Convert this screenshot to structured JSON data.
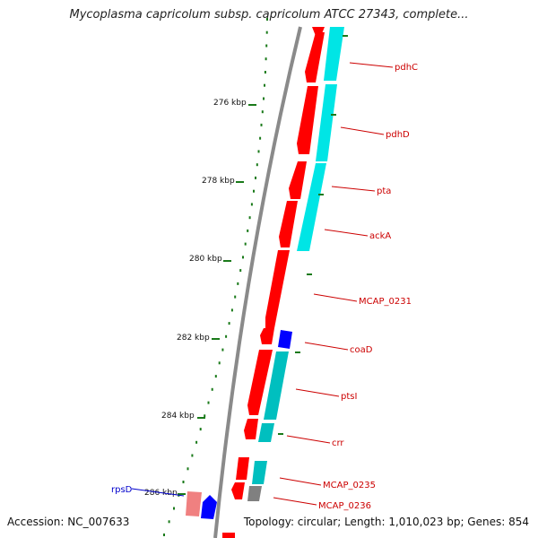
{
  "header": {
    "title": "Mycoplasma capricolum subsp. capricolum ATCC 27343, complete..."
  },
  "footer": {
    "accession": "Accession: NC_007633",
    "topology": "Topology: circular; Length: 1,010,023 bp; Genes: 854"
  },
  "scale_labels": [
    "276 kbp",
    "278 kbp",
    "280 kbp",
    "282 kbp",
    "284 kbp",
    "286 kbp"
  ],
  "gene_labels": [
    {
      "name": "pdhC",
      "color": "#cc0000"
    },
    {
      "name": "pdhD",
      "color": "#cc0000"
    },
    {
      "name": "pta",
      "color": "#cc0000"
    },
    {
      "name": "ackA",
      "color": "#cc0000"
    },
    {
      "name": "MCAP_0231",
      "color": "#cc0000"
    },
    {
      "name": "coaD",
      "color": "#cc0000"
    },
    {
      "name": "ptsI",
      "color": "#cc0000"
    },
    {
      "name": "crr",
      "color": "#cc0000"
    },
    {
      "name": "MCAP_0235",
      "color": "#cc0000"
    },
    {
      "name": "MCAP_0236",
      "color": "#cc0000"
    },
    {
      "name": "rpsD",
      "color": "#0000cc"
    }
  ],
  "colors": {
    "cds_forward": "#ff0000",
    "cds_reverse_rrna": "#0000ff",
    "match": "#00e5e5",
    "match_dark": "#00bfbf",
    "backbone": "#808080",
    "ticks": "#1a7a1a"
  }
}
